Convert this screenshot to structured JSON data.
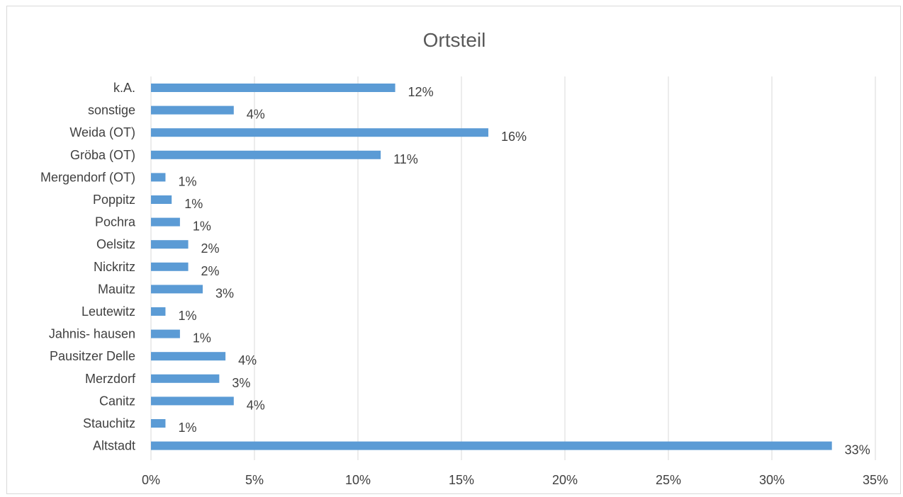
{
  "chart_data": {
    "type": "bar",
    "orientation": "horizontal",
    "title": "Ortsteil",
    "categories": [
      "k.A.",
      "sonstige",
      "Weida (OT)",
      "Gröba (OT)",
      "Mergendorf (OT)",
      "Poppitz",
      "Pochra",
      "Oelsitz",
      "Nickritz",
      "Mauitz",
      "Leutewitz",
      "Jahnis- hausen",
      "Pausitzer Delle",
      "Merzdorf",
      "Canitz",
      "Stauchitz",
      "Altstadt"
    ],
    "values": [
      11.8,
      4.0,
      16.3,
      11.1,
      0.7,
      1.0,
      1.4,
      1.8,
      1.8,
      2.5,
      0.7,
      1.4,
      3.6,
      3.3,
      4.0,
      0.7,
      32.9
    ],
    "data_labels": [
      "12%",
      "4%",
      "16%",
      "11%",
      "1%",
      "1%",
      "1%",
      "2%",
      "2%",
      "3%",
      "1%",
      "1%",
      "4%",
      "3%",
      "4%",
      "1%",
      "33%"
    ],
    "xlim": [
      0,
      35
    ],
    "x_ticks": [
      0,
      5,
      10,
      15,
      20,
      25,
      30,
      35
    ],
    "x_tick_labels": [
      "0%",
      "5%",
      "10%",
      "15%",
      "20%",
      "25%",
      "30%",
      "35%"
    ],
    "xlabel": "",
    "ylabel": "",
    "grid": "vertical",
    "legend": "none",
    "bar_color": "#5b9bd5",
    "grid_color": "#d9d9d9"
  }
}
